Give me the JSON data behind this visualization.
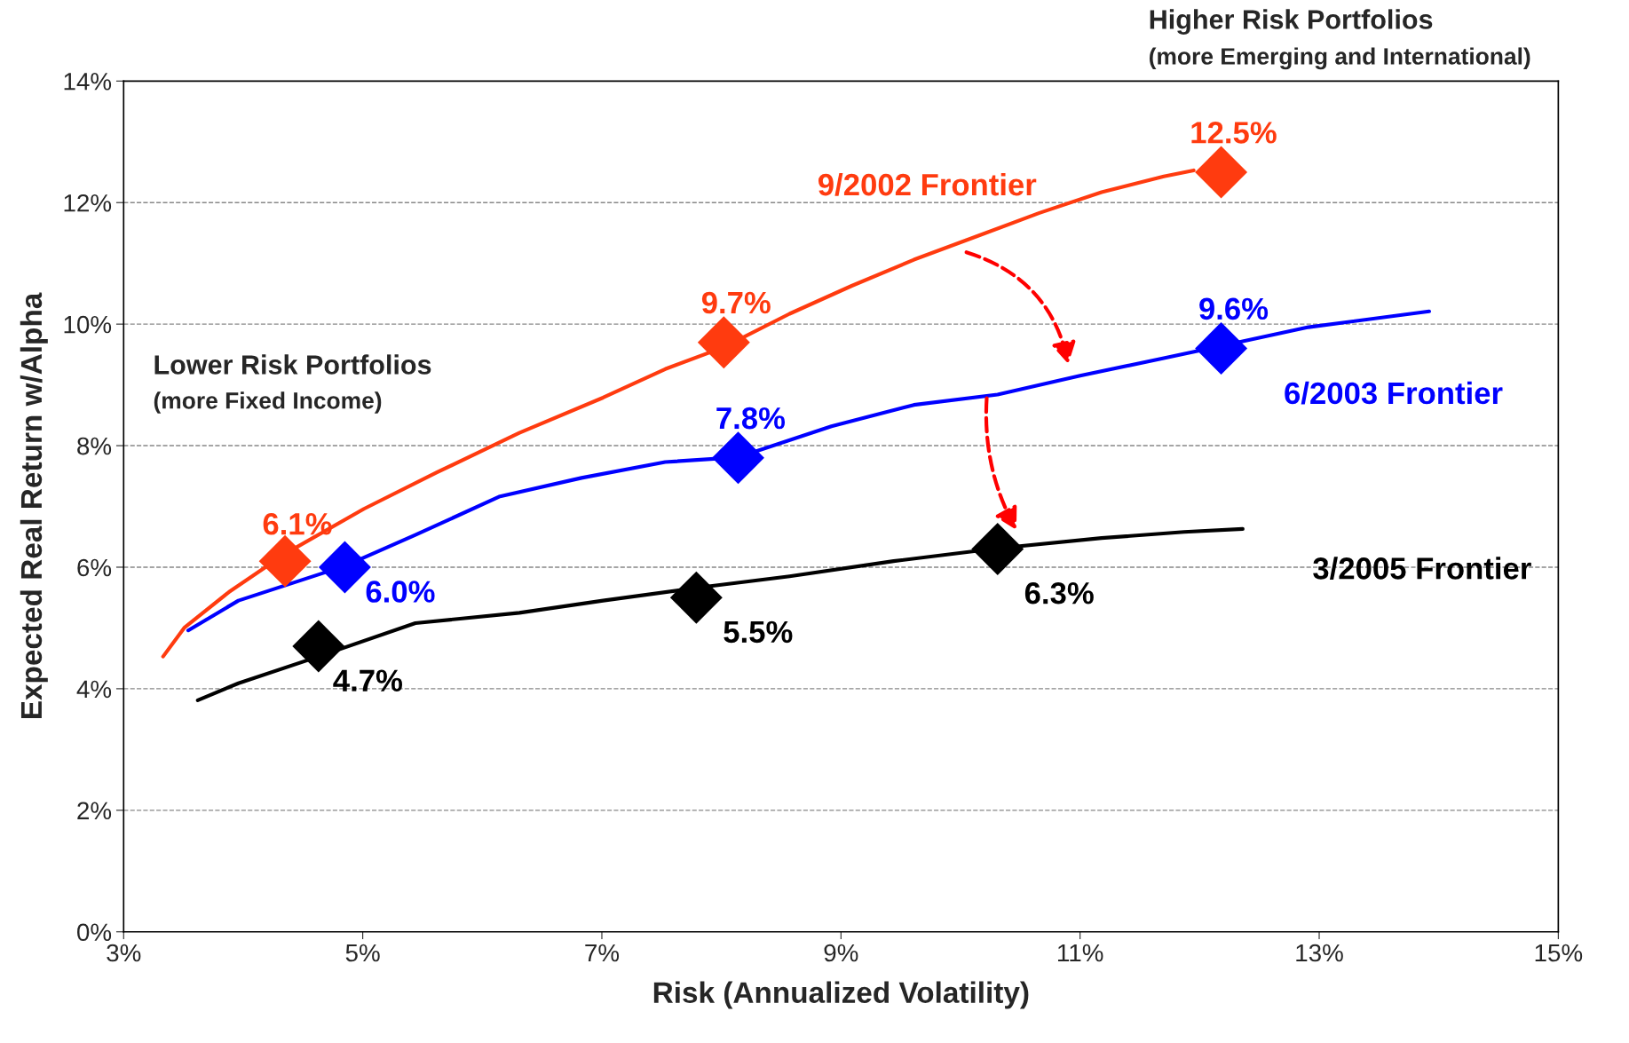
{
  "chart_data": {
    "type": "line",
    "xlabel": "Risk (Annualized Volatility)",
    "ylabel": "Expected Real Return w/Alpha",
    "xlim": [
      3,
      15
    ],
    "ylim": [
      0,
      14
    ],
    "xticks": [
      {
        "value": 3,
        "label": "3%"
      },
      {
        "value": 5,
        "label": "5%"
      },
      {
        "value": 7,
        "label": "7%"
      },
      {
        "value": 9,
        "label": "9%"
      },
      {
        "value": 11,
        "label": "11%"
      },
      {
        "value": 13,
        "label": "13%"
      },
      {
        "value": 15,
        "label": "15%"
      }
    ],
    "yticks": [
      {
        "value": 0,
        "label": "0%"
      },
      {
        "value": 2,
        "label": "2%"
      },
      {
        "value": 4,
        "label": "4%"
      },
      {
        "value": 6,
        "label": "6%"
      },
      {
        "value": 8,
        "label": "8%"
      },
      {
        "value": 10,
        "label": "10%"
      },
      {
        "value": 12,
        "label": "12%"
      },
      {
        "value": 14,
        "label": "14%"
      }
    ],
    "grid": "y",
    "legend": false,
    "marker": "none",
    "annotations": [
      "Higher Risk Portfolios",
      "(more Emerging and International)",
      "Lower Risk Portfolios",
      "(more Fixed Income)"
    ],
    "series": [
      {
        "name": "9/2002 Frontier",
        "color": "#ff3b0f",
        "x": [
          3.33,
          3.51,
          3.88,
          4.35,
          5.01,
          5.62,
          6.31,
          7.01,
          7.53,
          8.02,
          8.57,
          9.09,
          9.61,
          10.13,
          10.66,
          11.18,
          11.7,
          11.95
        ],
        "values": [
          4.53,
          5.01,
          5.59,
          6.22,
          6.96,
          7.56,
          8.21,
          8.79,
          9.26,
          9.62,
          10.17,
          10.63,
          11.06,
          11.44,
          11.83,
          12.17,
          12.43,
          12.53
        ]
      },
      {
        "name": "6/2003 Frontier",
        "color": "#0000ff",
        "x": [
          3.54,
          3.96,
          4.85,
          5.44,
          6.14,
          6.83,
          7.53,
          8.14,
          8.92,
          9.61,
          10.31,
          11.0,
          11.7,
          12.18,
          12.91,
          13.92
        ],
        "values": [
          4.96,
          5.45,
          6.02,
          6.53,
          7.16,
          7.47,
          7.73,
          7.81,
          8.32,
          8.67,
          8.84,
          9.15,
          9.44,
          9.64,
          9.95,
          10.21
        ]
      },
      {
        "name": "3/2005 Frontier",
        "color": "#000000",
        "x": [
          3.62,
          3.96,
          4.63,
          5.44,
          6.31,
          7.01,
          7.79,
          8.57,
          9.44,
          10.31,
          11.18,
          11.87,
          12.36
        ],
        "values": [
          3.81,
          4.09,
          4.53,
          5.08,
          5.25,
          5.45,
          5.66,
          5.85,
          6.1,
          6.31,
          6.48,
          6.58,
          6.63
        ]
      },
      {
        "type": "scatter",
        "marker": "diamond",
        "color": "#ff3b0f",
        "x": [
          4.35,
          8.02,
          12.18
        ],
        "values": [
          6.1,
          9.7,
          12.5
        ],
        "value_labels": [
          "6.1%",
          "9.7%",
          "12.5%"
        ]
      },
      {
        "type": "scatter",
        "marker": "diamond",
        "color": "#0000ff",
        "x": [
          4.85,
          8.14,
          12.18
        ],
        "values": [
          6.0,
          7.8,
          9.6
        ],
        "value_labels": [
          "6.0%",
          "7.8%",
          "9.6%"
        ]
      },
      {
        "type": "scatter",
        "marker": "diamond",
        "color": "#000000",
        "x": [
          4.63,
          7.79,
          10.31
        ],
        "values": [
          4.7,
          5.5,
          6.3
        ],
        "value_labels": [
          "4.7%",
          "5.5%",
          "6.3%"
        ]
      }
    ]
  }
}
